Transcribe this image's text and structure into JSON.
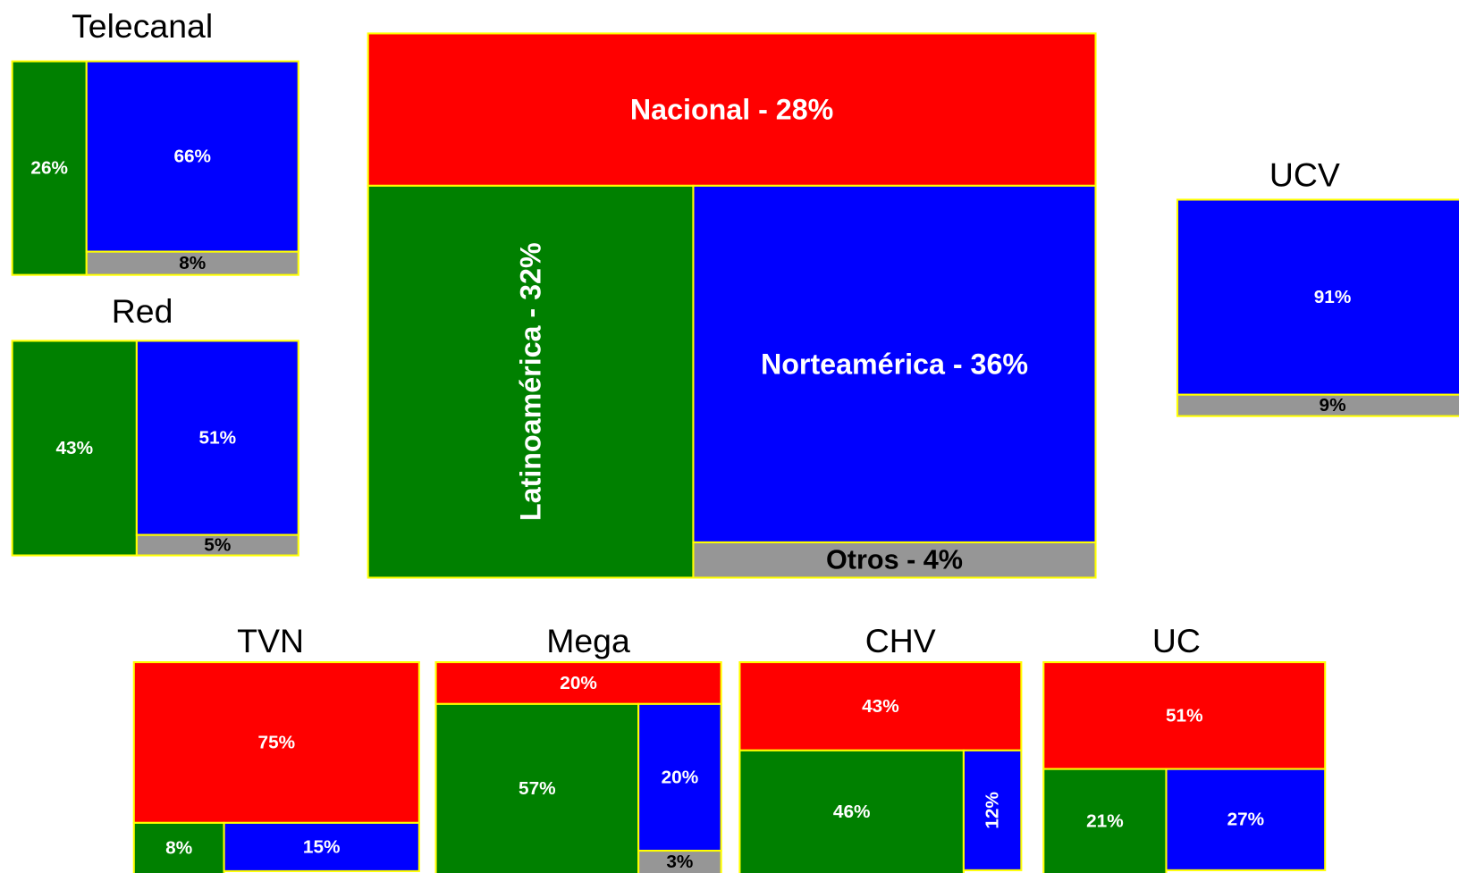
{
  "chart_data": [
    {
      "type": "treemap",
      "title": "Telecanal",
      "values": [
        26,
        66,
        8
      ],
      "value_labels": [
        "26%",
        "66%",
        "8%"
      ],
      "colors": [
        "#008000",
        "#0000ff",
        "#969696"
      ]
    },
    {
      "type": "treemap",
      "title": "Red",
      "values": [
        43,
        51,
        5
      ],
      "value_labels": [
        "43%",
        "51%",
        "5%"
      ],
      "colors": [
        "#008000",
        "#0000ff",
        "#969696"
      ]
    },
    {
      "type": "treemap",
      "values": [
        28,
        32,
        36,
        4
      ],
      "value_labels": [
        "Nacional - 28%",
        "Latinoamérica - 32%",
        "Norteamérica - 36%",
        "Otros - 4%"
      ],
      "colors": [
        "#ff0000",
        "#008000",
        "#0000ff",
        "#969696"
      ]
    },
    {
      "type": "treemap",
      "title": "UCV",
      "values": [
        91,
        9
      ],
      "value_labels": [
        "91%",
        "9%"
      ],
      "colors": [
        "#0000ff",
        "#969696"
      ]
    },
    {
      "type": "treemap",
      "title": "TVN",
      "values": [
        75,
        8,
        15
      ],
      "value_labels": [
        "75%",
        "8%",
        "15%"
      ],
      "colors": [
        "#ff0000",
        "#008000",
        "#0000ff"
      ]
    },
    {
      "type": "treemap",
      "title": "Mega",
      "values": [
        20,
        57,
        20,
        3
      ],
      "value_labels": [
        "20%",
        "57%",
        "20%",
        "3%"
      ],
      "colors": [
        "#ff0000",
        "#008000",
        "#0000ff",
        "#969696"
      ]
    },
    {
      "type": "treemap",
      "title": "CHV",
      "values": [
        43,
        46,
        12
      ],
      "value_labels": [
        "43%",
        "46%",
        "12%"
      ],
      "colors": [
        "#ff0000",
        "#008000",
        "#0000ff"
      ]
    },
    {
      "type": "treemap",
      "title": "UC",
      "values": [
        51,
        21,
        27
      ],
      "value_labels": [
        "51%",
        "21%",
        "27%"
      ],
      "colors": [
        "#ff0000",
        "#008000",
        "#0000ff"
      ]
    }
  ]
}
